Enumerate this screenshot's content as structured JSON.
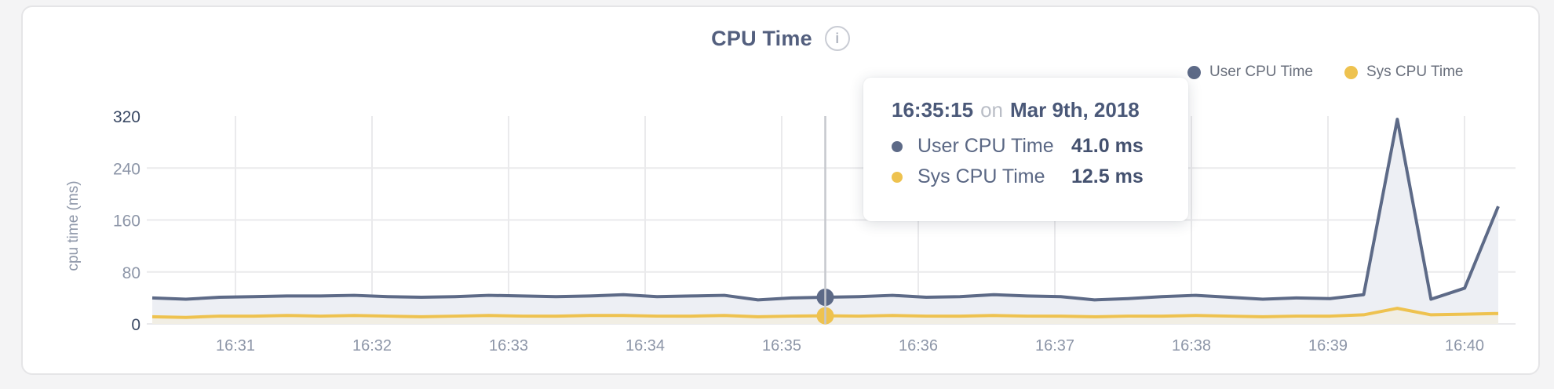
{
  "header": {
    "title": "CPU Time",
    "info_icon": "i"
  },
  "legend": [
    {
      "label": "User CPU Time",
      "color": "#5d6a87"
    },
    {
      "label": "Sys CPU Time",
      "color": "#eec24f"
    }
  ],
  "tooltip": {
    "time": "16:35:15",
    "connector": "on",
    "date": "Mar 9th, 2018",
    "rows": [
      {
        "label": "User CPU Time",
        "value": "41.0 ms",
        "color": "#5d6a87"
      },
      {
        "label": "Sys CPU Time",
        "value": "12.5 ms",
        "color": "#eec24f"
      }
    ]
  },
  "colors": {
    "user_fill": "#edeff4",
    "sys_fill": "#f1eee4",
    "grid": "#eaeaec",
    "axis_label": "#8d96a8",
    "axis_label_dark": "#3a4964",
    "crosshair": "#c6c8cd"
  },
  "chart_data": {
    "type": "area",
    "title": "CPU Time",
    "xlabel": "",
    "ylabel": "cpu time (ms)",
    "ylim": [
      0,
      320
    ],
    "y_ticks": [
      320,
      240,
      160,
      80,
      0
    ],
    "x_ticks": [
      "16:31",
      "16:32",
      "16:33",
      "16:34",
      "16:35",
      "16:36",
      "16:37",
      "16:38",
      "16:39",
      "16:40"
    ],
    "grid": true,
    "legend_position": "top-right",
    "x": [
      "16:30:15",
      "16:30:30",
      "16:30:45",
      "16:31:00",
      "16:31:15",
      "16:31:30",
      "16:31:45",
      "16:32:00",
      "16:32:15",
      "16:32:30",
      "16:32:45",
      "16:33:00",
      "16:33:15",
      "16:33:30",
      "16:33:45",
      "16:34:00",
      "16:34:15",
      "16:34:30",
      "16:34:45",
      "16:35:00",
      "16:35:15",
      "16:35:30",
      "16:35:45",
      "16:36:00",
      "16:36:15",
      "16:36:30",
      "16:36:45",
      "16:37:00",
      "16:37:15",
      "16:37:30",
      "16:37:45",
      "16:38:00",
      "16:38:15",
      "16:38:30",
      "16:38:45",
      "16:39:00",
      "16:39:15",
      "16:39:30",
      "16:39:45",
      "16:40:00",
      "16:40:15"
    ],
    "series": [
      {
        "name": "User CPU Time",
        "color": "#5d6a87",
        "unit": "ms",
        "values": [
          40,
          38,
          41,
          42,
          43,
          43,
          44,
          42,
          41,
          42,
          44,
          43,
          42,
          43,
          45,
          42,
          43,
          44,
          37,
          40,
          41,
          42,
          44,
          41,
          42,
          45,
          43,
          42,
          37,
          39,
          42,
          44,
          41,
          38,
          40,
          39,
          45,
          315,
          38,
          55,
          181
        ]
      },
      {
        "name": "Sys CPU Time",
        "color": "#eec24f",
        "unit": "ms",
        "values": [
          11,
          10,
          12,
          12,
          13,
          12,
          13,
          12,
          11,
          12,
          13,
          12,
          12,
          13,
          13,
          12,
          12,
          13,
          11,
          12,
          12.5,
          12,
          13,
          12,
          12,
          13,
          12,
          12,
          11,
          12,
          12,
          13,
          12,
          11,
          12,
          12,
          14,
          24,
          14,
          15,
          16
        ]
      }
    ],
    "highlight": {
      "index": 20,
      "time": "16:35:15",
      "date": "Mar 9th, 2018",
      "user_ms": 41.0,
      "sys_ms": 12.5
    }
  }
}
